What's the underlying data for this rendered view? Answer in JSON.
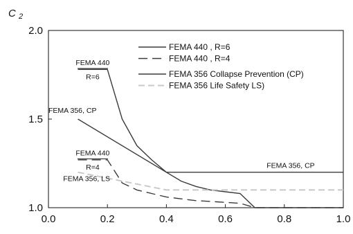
{
  "chart_data": {
    "type": "line",
    "title": "",
    "ylabel_main": "C",
    "ylabel_sub": "2",
    "xlabel": "",
    "xlim": [
      0.0,
      1.0
    ],
    "ylim": [
      1.0,
      2.0
    ],
    "xticks": [
      "0.0",
      "0.2",
      "0.4",
      "0.6",
      "0.8",
      "1.0"
    ],
    "yticks": [
      "1.0",
      "1.5",
      "2.0"
    ],
    "grid": false,
    "legend_position": "top-right",
    "series": [
      {
        "name": "FEMA 440 , R=6",
        "style": "solid",
        "color": "#3a3a3a",
        "x": [
          0.1,
          0.2,
          0.25,
          0.3,
          0.35,
          0.4,
          0.45,
          0.5,
          0.55,
          0.6,
          0.65,
          0.7,
          1.0
        ],
        "y": [
          1.78,
          1.78,
          1.5,
          1.35,
          1.27,
          1.2,
          1.15,
          1.12,
          1.1,
          1.09,
          1.08,
          1.0,
          1.0
        ]
      },
      {
        "name": "FEMA 440 , R=4",
        "style": "dashed",
        "color": "#3a3a3a",
        "x": [
          0.1,
          0.2,
          0.25,
          0.3,
          0.35,
          0.4,
          0.45,
          0.5,
          0.55,
          0.6,
          0.65,
          0.7,
          1.0
        ],
        "y": [
          1.27,
          1.27,
          1.14,
          1.1,
          1.08,
          1.06,
          1.05,
          1.04,
          1.035,
          1.03,
          1.025,
          1.0,
          1.0
        ]
      },
      {
        "name": "FEMA 356 Collapse Prevention (CP)",
        "style": "solid",
        "color": "#3a3a3a",
        "x": [
          0.1,
          0.4,
          1.0
        ],
        "y": [
          1.5,
          1.2,
          1.2
        ]
      },
      {
        "name": "FEMA 356 Life Safety LS)",
        "style": "dashed",
        "color": "#c8c8c8",
        "x": [
          0.1,
          0.4,
          1.0
        ],
        "y": [
          1.2,
          1.1,
          1.1
        ]
      }
    ],
    "annotations": [
      {
        "text": "FEMA 440",
        "underline": true,
        "x": 0.15,
        "y": 1.805
      },
      {
        "text": "R=6",
        "x": 0.15,
        "y": 1.725
      },
      {
        "text": "FEMA 356, CP",
        "x": 0.0,
        "y": 1.535
      },
      {
        "text": "FEMA 440",
        "underline": true,
        "x": 0.15,
        "y": 1.295
      },
      {
        "text": "R=4",
        "x": 0.15,
        "y": 1.215
      },
      {
        "text": "FEMA 356, LS",
        "x": 0.05,
        "y": 1.15
      },
      {
        "text": "FEMA 356, CP",
        "x": 0.74,
        "y": 1.225
      }
    ]
  }
}
